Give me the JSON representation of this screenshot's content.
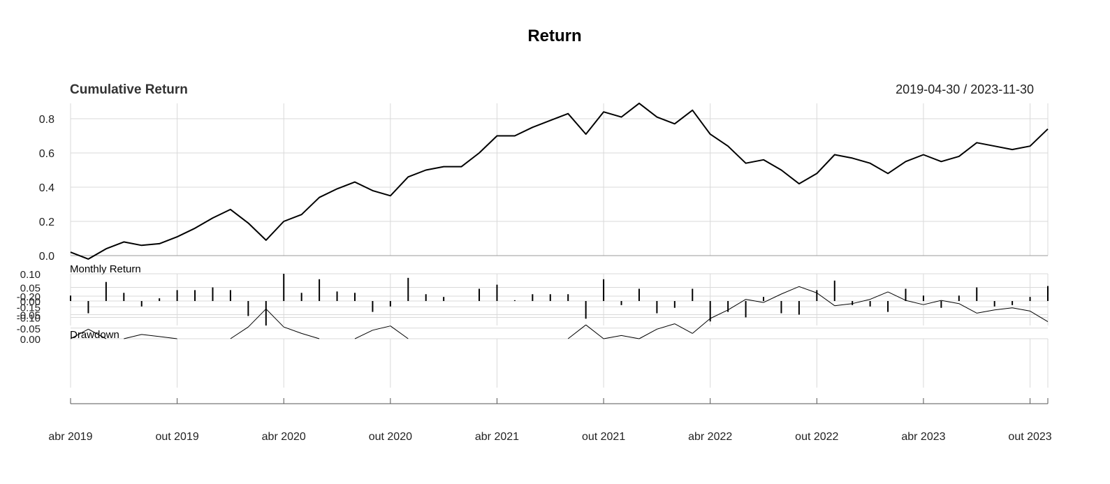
{
  "chart_data": {
    "type": "line",
    "title": "Return",
    "date_range": "2019-04-30 / 2023-11-30",
    "x_tick_labels": [
      "abr 2019",
      "out 2019",
      "abr 2020",
      "out 2020",
      "abr 2021",
      "out 2021",
      "abr 2022",
      "out 2022",
      "abr 2023",
      "out 2023"
    ],
    "x": [
      "2019-04",
      "2019-05",
      "2019-06",
      "2019-07",
      "2019-08",
      "2019-09",
      "2019-10",
      "2019-11",
      "2019-12",
      "2020-01",
      "2020-02",
      "2020-03",
      "2020-04",
      "2020-05",
      "2020-06",
      "2020-07",
      "2020-08",
      "2020-09",
      "2020-10",
      "2020-11",
      "2020-12",
      "2021-01",
      "2021-02",
      "2021-03",
      "2021-04",
      "2021-05",
      "2021-06",
      "2021-07",
      "2021-08",
      "2021-09",
      "2021-10",
      "2021-11",
      "2021-12",
      "2022-01",
      "2022-02",
      "2022-03",
      "2022-04",
      "2022-05",
      "2022-06",
      "2022-07",
      "2022-08",
      "2022-09",
      "2022-10",
      "2022-11",
      "2022-12",
      "2023-01",
      "2023-02",
      "2023-03",
      "2023-04",
      "2023-05",
      "2023-06",
      "2023-07",
      "2023-08",
      "2023-09",
      "2023-10",
      "2023-11"
    ],
    "panels": [
      {
        "name": "Cumulative Return",
        "kind": "line",
        "yticks": [
          0.0,
          0.2,
          0.4,
          0.6,
          0.8
        ],
        "ytick_labels": [
          "0.0",
          "0.2",
          "0.4",
          "0.6",
          "0.8"
        ],
        "ylim": [
          0.0,
          0.9
        ],
        "values": [
          0.02,
          -0.02,
          0.04,
          0.08,
          0.06,
          0.07,
          0.11,
          0.16,
          0.22,
          0.27,
          0.19,
          0.09,
          0.2,
          0.24,
          0.34,
          0.39,
          0.43,
          0.38,
          0.35,
          0.46,
          0.5,
          0.52,
          0.52,
          0.6,
          0.7,
          0.7,
          0.75,
          0.79,
          0.83,
          0.71,
          0.84,
          0.81,
          0.89,
          0.81,
          0.77,
          0.85,
          0.71,
          0.64,
          0.54,
          0.56,
          0.5,
          0.42,
          0.48,
          0.59,
          0.57,
          0.54,
          0.48,
          0.55,
          0.59,
          0.55,
          0.58,
          0.66,
          0.64,
          0.62,
          0.64,
          0.74
        ]
      },
      {
        "name": "Monthly Return",
        "kind": "bar",
        "yticks": [
          0.1,
          0.05,
          0.0,
          -0.05
        ],
        "ytick_labels": [
          "0.10",
          "0.05",
          "0.00",
          "-0.05"
        ],
        "ylim": [
          -0.09,
          0.1
        ],
        "values": [
          0.02,
          -0.045,
          0.07,
          0.03,
          -0.02,
          0.01,
          0.04,
          0.04,
          0.05,
          0.04,
          -0.055,
          -0.09,
          0.1,
          0.03,
          0.08,
          0.035,
          0.03,
          -0.04,
          -0.02,
          0.085,
          0.025,
          0.015,
          0.0,
          0.045,
          0.06,
          0.003,
          0.025,
          0.025,
          0.025,
          -0.065,
          0.08,
          -0.015,
          0.045,
          -0.045,
          -0.025,
          0.045,
          -0.075,
          -0.04,
          -0.06,
          0.015,
          -0.045,
          -0.05,
          0.04,
          0.075,
          -0.015,
          -0.02,
          -0.04,
          0.045,
          0.02,
          -0.025,
          0.02,
          0.05,
          -0.02,
          -0.015,
          0.015,
          0.055
        ]
      },
      {
        "name": "Drawdown",
        "kind": "line",
        "yticks": [
          0.0,
          -0.05,
          -0.1,
          -0.15,
          -0.2
        ],
        "ytick_labels": [
          "0.00",
          "-0.05",
          "-0.10",
          "-0.15",
          "-0.20"
        ],
        "ylim": [
          -0.25,
          0.0
        ],
        "values": [
          0.0,
          -0.045,
          0.0,
          0.0,
          -0.02,
          -0.01,
          0.0,
          0.0,
          0.0,
          0.0,
          -0.055,
          -0.14,
          -0.055,
          -0.025,
          0.0,
          0.0,
          0.0,
          -0.04,
          -0.06,
          0.0,
          0.0,
          0.0,
          0.0,
          0.0,
          0.0,
          0.0,
          0.0,
          0.0,
          0.0,
          -0.065,
          0.0,
          -0.015,
          0.0,
          -0.045,
          -0.07,
          -0.025,
          -0.095,
          -0.135,
          -0.185,
          -0.17,
          -0.21,
          -0.245,
          -0.215,
          -0.155,
          -0.165,
          -0.185,
          -0.22,
          -0.18,
          -0.16,
          -0.18,
          -0.165,
          -0.12,
          -0.135,
          -0.145,
          -0.13,
          -0.08
        ]
      }
    ],
    "grid": true
  }
}
